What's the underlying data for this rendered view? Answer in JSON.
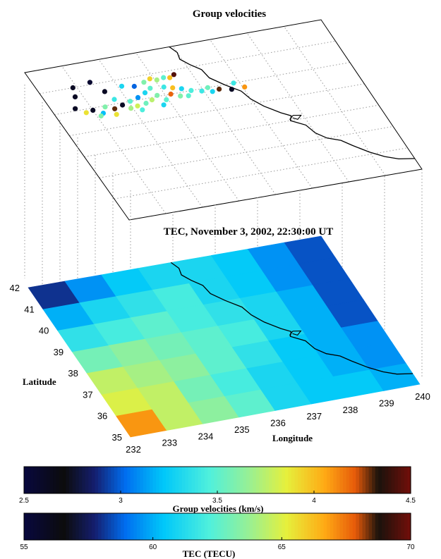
{
  "chart_data": [
    {
      "type": "scatter",
      "title": "Group velocities",
      "x_range": [
        232,
        240
      ],
      "y_range": [
        35,
        42
      ],
      "points": [
        {
          "x": 232.9,
          "y": 41.0,
          "v": 2.6
        },
        {
          "x": 233.4,
          "y": 41.1,
          "v": 2.55
        },
        {
          "x": 232.8,
          "y": 40.6,
          "v": 2.6
        },
        {
          "x": 233.6,
          "y": 40.6,
          "v": 2.6
        },
        {
          "x": 234.1,
          "y": 40.7,
          "v": 3.3
        },
        {
          "x": 234.4,
          "y": 40.6,
          "v": 3.0
        },
        {
          "x": 234.7,
          "y": 40.7,
          "v": 3.6
        },
        {
          "x": 234.9,
          "y": 40.8,
          "v": 3.95
        },
        {
          "x": 235.05,
          "y": 40.7,
          "v": 3.7
        },
        {
          "x": 235.25,
          "y": 40.75,
          "v": 3.5
        },
        {
          "x": 235.4,
          "y": 40.7,
          "v": 4.0
        },
        {
          "x": 235.55,
          "y": 40.8,
          "v": 4.45
        },
        {
          "x": 232.6,
          "y": 40.1,
          "v": 2.6
        },
        {
          "x": 232.8,
          "y": 39.85,
          "v": 3.9
        },
        {
          "x": 233.0,
          "y": 39.9,
          "v": 2.6
        },
        {
          "x": 233.2,
          "y": 39.7,
          "v": 3.2
        },
        {
          "x": 233.35,
          "y": 39.95,
          "v": 3.6
        },
        {
          "x": 233.55,
          "y": 39.8,
          "v": 4.3
        },
        {
          "x": 233.7,
          "y": 40.2,
          "v": 3.4
        },
        {
          "x": 233.8,
          "y": 39.9,
          "v": 2.6
        },
        {
          "x": 233.95,
          "y": 39.7,
          "v": 3.7
        },
        {
          "x": 234.05,
          "y": 40.0,
          "v": 3.5
        },
        {
          "x": 234.15,
          "y": 39.75,
          "v": 3.8
        },
        {
          "x": 234.3,
          "y": 40.1,
          "v": 3.1
        },
        {
          "x": 234.4,
          "y": 39.8,
          "v": 3.55
        },
        {
          "x": 234.55,
          "y": 40.25,
          "v": 3.3
        },
        {
          "x": 234.6,
          "y": 39.9,
          "v": 3.75
        },
        {
          "x": 234.75,
          "y": 40.4,
          "v": 3.5
        },
        {
          "x": 234.8,
          "y": 40.05,
          "v": 3.6
        },
        {
          "x": 234.95,
          "y": 39.8,
          "v": 3.5
        },
        {
          "x": 235.1,
          "y": 40.35,
          "v": 3.4
        },
        {
          "x": 235.15,
          "y": 40.0,
          "v": 4.2
        },
        {
          "x": 235.3,
          "y": 40.25,
          "v": 4.0
        },
        {
          "x": 235.35,
          "y": 39.85,
          "v": 3.6
        },
        {
          "x": 235.5,
          "y": 40.15,
          "v": 3.3
        },
        {
          "x": 235.55,
          "y": 39.8,
          "v": 3.5
        },
        {
          "x": 235.7,
          "y": 40.0,
          "v": 3.45
        },
        {
          "x": 235.95,
          "y": 39.9,
          "v": 3.4
        },
        {
          "x": 236.2,
          "y": 39.8,
          "v": 3.3
        },
        {
          "x": 236.15,
          "y": 40.0,
          "v": 3.55
        },
        {
          "x": 236.4,
          "y": 39.85,
          "v": 4.3
        },
        {
          "x": 236.7,
          "y": 39.75,
          "v": 2.6
        },
        {
          "x": 236.85,
          "y": 40.0,
          "v": 3.4
        },
        {
          "x": 237.05,
          "y": 39.75,
          "v": 4.1
        },
        {
          "x": 233.1,
          "y": 39.6,
          "v": 3.6
        },
        {
          "x": 233.5,
          "y": 39.55,
          "v": 3.9
        },
        {
          "x": 234.2,
          "y": 39.55,
          "v": 3.45
        },
        {
          "x": 234.8,
          "y": 39.6,
          "v": 3.3
        }
      ]
    },
    {
      "type": "heatmap",
      "title": "TEC, November 3, 2002, 22:30:00 UT",
      "xlabel": "Longitude",
      "ylabel": "Latitude",
      "x_ticks": [
        232,
        233,
        234,
        235,
        236,
        237,
        238,
        239,
        240
      ],
      "y_ticks": [
        35,
        36,
        37,
        38,
        39,
        40,
        41,
        42
      ],
      "x_range": [
        232,
        240
      ],
      "y_range": [
        35,
        42
      ],
      "rows_south_to_north": [
        [
          67.0,
          64.5,
          63.5,
          62.5,
          61.0,
          60.5,
          60.5,
          60.0
        ],
        [
          65.0,
          64.5,
          63.0,
          62.0,
          61.0,
          60.5,
          60.0,
          59.5
        ],
        [
          64.5,
          64.0,
          63.5,
          62.5,
          61.5,
          60.5,
          60.0,
          59.5
        ],
        [
          63.0,
          63.5,
          63.0,
          62.5,
          62.0,
          61.0,
          60.0,
          58.5
        ],
        [
          61.5,
          62.0,
          62.5,
          62.0,
          61.5,
          61.0,
          60.0,
          58.5
        ],
        [
          60.0,
          61.0,
          61.5,
          62.0,
          61.0,
          60.5,
          59.5,
          58.5
        ],
        [
          58.0,
          59.5,
          60.5,
          61.0,
          61.0,
          60.5,
          59.5,
          58.5
        ]
      ]
    }
  ],
  "colorbars": [
    {
      "label": "Group velocities (km/s)",
      "ticks": [
        "2.5",
        "3",
        "3.5",
        "4",
        "4.5"
      ],
      "min": 2.5,
      "max": 4.5
    },
    {
      "label": "TEC (TECU)",
      "ticks": [
        "55",
        "60",
        "65",
        "70"
      ],
      "min": 55,
      "max": 70
    }
  ]
}
